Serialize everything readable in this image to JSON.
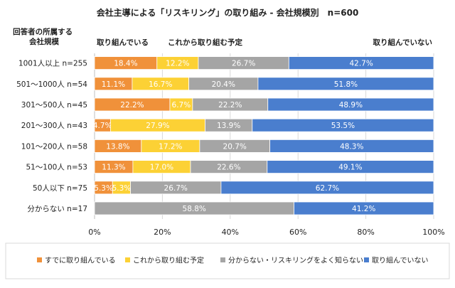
{
  "chart_data": {
    "type": "bar",
    "orientation": "horizontal",
    "stacked": true,
    "title": "会社主導による「リスキリング」の取り組み - 会社規模別　n=600",
    "y_axis_title": "回答者の所属する会社規模",
    "categories": [
      "1001人以上 n=255",
      "501～1000人 n=54",
      "301～500人 n=45",
      "201～300人 n=43",
      "101～200人 n=58",
      "51～100人 n=53",
      "50人以下 n=75",
      "分からない n=17"
    ],
    "series": [
      {
        "name": "すでに取り組んでいる",
        "color": "#f0913a",
        "values": [
          18.4,
          11.1,
          22.2,
          4.7,
          13.8,
          11.3,
          5.3,
          0
        ],
        "labels": [
          "18.4%",
          "11.1%",
          "22.2%",
          "4.7%",
          "13.8%",
          "11.3%",
          "5.3%",
          ""
        ]
      },
      {
        "name": "これから取り組む予定",
        "color": "#fcd135",
        "values": [
          12.2,
          16.7,
          6.7,
          27.9,
          17.2,
          17.0,
          5.3,
          0
        ],
        "labels": [
          "12.2%",
          "16.7%",
          "6.7%",
          "27.9%",
          "17.2%",
          "17.0%",
          "5.3%",
          ""
        ]
      },
      {
        "name": "分からない・リスキリングをよく知らない",
        "color": "#a5a5a5",
        "values": [
          26.7,
          20.4,
          22.2,
          13.9,
          20.7,
          22.6,
          26.7,
          58.8
        ],
        "labels": [
          "26.7%",
          "20.4%",
          "22.2%",
          "13.9%",
          "20.7%",
          "22.6%",
          "26.7%",
          "58.8%"
        ]
      },
      {
        "name": "取り組んでいない",
        "color": "#4a7ece",
        "values": [
          42.7,
          51.8,
          48.9,
          53.5,
          48.3,
          49.1,
          62.7,
          41.2
        ],
        "labels": [
          "42.7%",
          "51.8%",
          "48.9%",
          "53.5%",
          "48.3%",
          "49.1%",
          "62.7%",
          "41.2%"
        ]
      }
    ],
    "xlim": [
      0,
      100
    ],
    "x_ticks": [
      "0%",
      "20%",
      "40%",
      "60%",
      "80%",
      "100%"
    ],
    "grid": true,
    "legend_placement": "bottom",
    "header_labels": [
      "取り組んでいる",
      "これから取り組む予定",
      "取り組んでいない"
    ]
  }
}
